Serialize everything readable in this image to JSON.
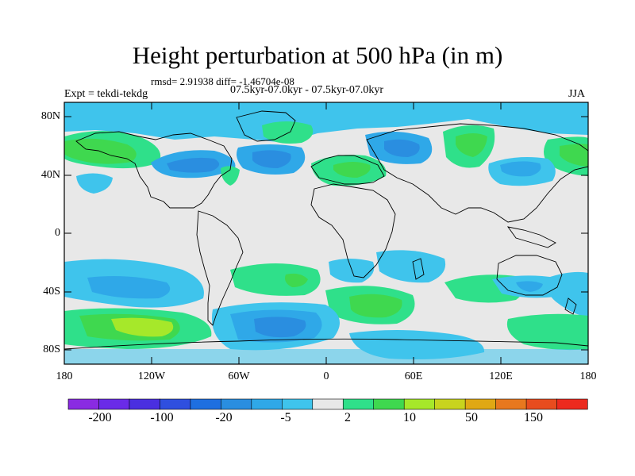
{
  "title": "Height perturbation at 500 hPa (in m)",
  "stats_text": "rmsd= 2.91938 diff= -1.46704e-08",
  "expt_text": "Expt = tekdi-tekdg",
  "period_text": "07.5kyr-07.0kyr - 07.5kyr-07.0kyr",
  "season_text": "JJA",
  "lat_labels": [
    "80N",
    "40N",
    "0",
    "40S",
    "80S"
  ],
  "lon_labels": [
    "180",
    "120W",
    "60W",
    "0",
    "60E",
    "120E",
    "180"
  ],
  "colorbar": {
    "colors": [
      "#8a2be2",
      "#6a2be8",
      "#4a2fe0",
      "#2f4fdf",
      "#1e6fe0",
      "#2a8ee0",
      "#2fa8e8",
      "#3fc4ec",
      "#e8e8e8",
      "#2fe08a",
      "#3fd84f",
      "#a6e82a",
      "#c8d41e",
      "#e0a814",
      "#e8781e",
      "#e84c1e",
      "#ec2a1e"
    ],
    "labels": [
      "-200",
      "-100",
      "-20",
      "-5",
      "2",
      "10",
      "50",
      "150"
    ]
  }
}
